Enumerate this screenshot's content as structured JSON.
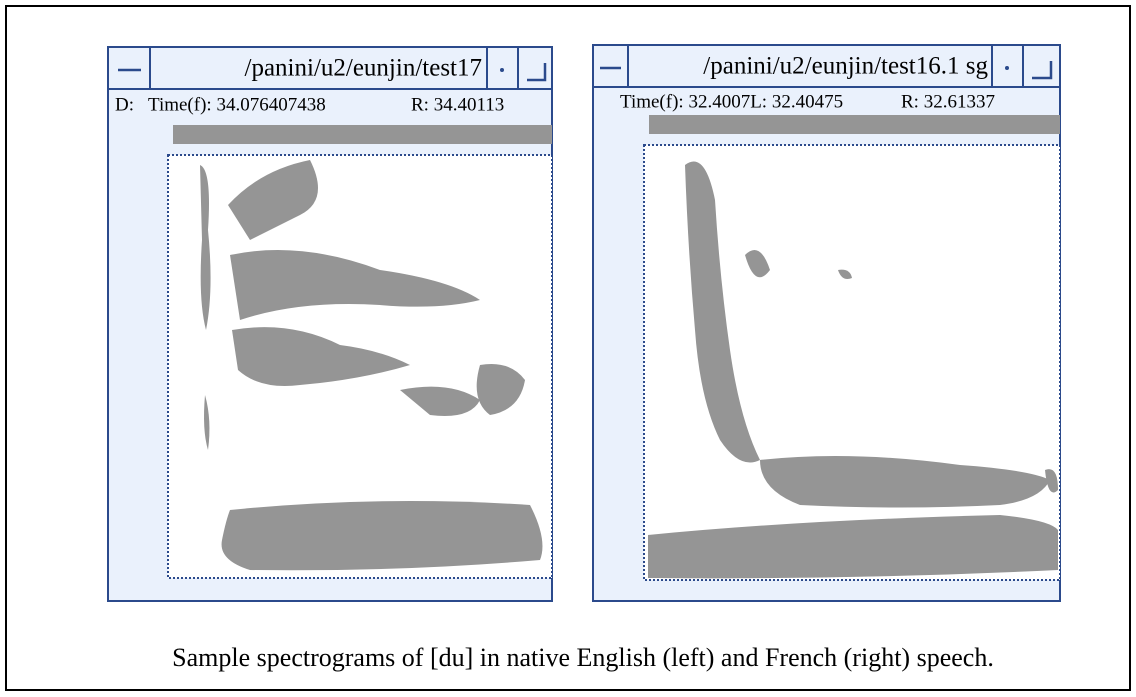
{
  "windows": [
    {
      "title": "/panini/u2/eunjin/test17",
      "info": [
        "D:",
        "Time(f): 34.076407438",
        "R:  34.40113"
      ]
    },
    {
      "title": "/panini/u2/eunjin/test16.1 sg",
      "info": [
        "Time(f): 32.4007L: 32.40475",
        "R: 32.61337"
      ]
    }
  ],
  "caption": "Sample spectrograms of [du] in native English (left) and French (right) speech."
}
